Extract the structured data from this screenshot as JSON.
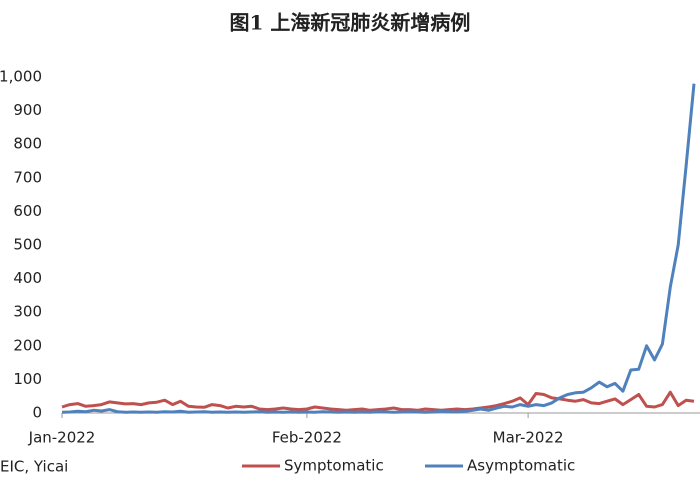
{
  "chart_data": {
    "type": "line",
    "title": "图1  上海新冠肺炎新增病例",
    "source": "EIC, Yicai",
    "categories": [
      "Jan-2022",
      null,
      null,
      null,
      null,
      null,
      null,
      null,
      null,
      null,
      null,
      null,
      null,
      null,
      null,
      null,
      null,
      null,
      null,
      null,
      null,
      null,
      null,
      null,
      null,
      null,
      null,
      null,
      null,
      null,
      null,
      "Feb-2022",
      null,
      null,
      null,
      null,
      null,
      null,
      null,
      null,
      null,
      null,
      null,
      null,
      null,
      null,
      null,
      null,
      null,
      null,
      null,
      null,
      null,
      null,
      null,
      null,
      null,
      null,
      null,
      "Mar-2022",
      null,
      null,
      null,
      null,
      null,
      null,
      null,
      null,
      null,
      null,
      null,
      null,
      null,
      null,
      null,
      null,
      null,
      null,
      null,
      null,
      null
    ],
    "series": [
      {
        "name": "Symptomatic",
        "color": "#c0504d",
        "values": [
          18,
          25,
          28,
          20,
          22,
          25,
          33,
          30,
          27,
          28,
          25,
          30,
          32,
          38,
          25,
          35,
          20,
          18,
          17,
          25,
          22,
          15,
          20,
          18,
          20,
          12,
          10,
          12,
          15,
          12,
          10,
          12,
          18,
          15,
          12,
          10,
          8,
          10,
          12,
          8,
          10,
          12,
          15,
          10,
          10,
          8,
          12,
          10,
          8,
          10,
          12,
          10,
          12,
          15,
          18,
          22,
          28,
          35,
          45,
          25,
          58,
          55,
          45,
          42,
          38,
          35,
          40,
          30,
          28,
          35,
          42,
          25,
          40,
          55,
          20,
          18,
          25,
          62,
          22,
          38,
          35
        ]
      },
      {
        "name": "Asymptomatic",
        "color": "#4f81bd",
        "values": [
          2,
          3,
          5,
          4,
          8,
          6,
          10,
          4,
          2,
          3,
          2,
          3,
          2,
          4,
          3,
          5,
          2,
          3,
          4,
          2,
          3,
          2,
          3,
          2,
          3,
          4,
          2,
          3,
          2,
          3,
          2,
          3,
          2,
          4,
          3,
          2,
          3,
          2,
          3,
          2,
          4,
          3,
          2,
          3,
          4,
          3,
          2,
          3,
          5,
          4,
          3,
          5,
          8,
          12,
          8,
          15,
          20,
          18,
          25,
          20,
          25,
          22,
          30,
          45,
          55,
          60,
          62,
          75,
          92,
          78,
          88,
          65,
          128,
          130,
          200,
          158,
          205,
          375,
          500,
          735,
          980
        ]
      }
    ],
    "ylim": [
      0,
      1000
    ],
    "yticks": [
      0,
      100,
      200,
      300,
      400,
      500,
      600,
      700,
      800,
      900,
      {
        "value": 1000,
        "label": "1,000"
      }
    ],
    "grid": false
  }
}
